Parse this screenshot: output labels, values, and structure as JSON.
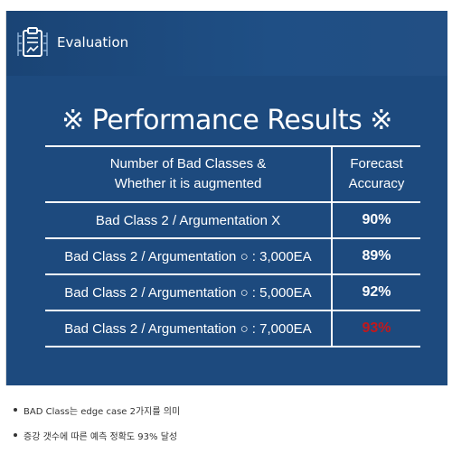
{
  "header": {
    "title": "Evaluation",
    "icon": "clipboard-chart-icon"
  },
  "slide": {
    "title": "※ Performance Results ※"
  },
  "table": {
    "headers": [
      "Number of Bad Classes &\nWhether it is augmented",
      "Forecast\nAccuracy"
    ],
    "rows": [
      {
        "condition": "Bad Class 2 / Argumentation X",
        "accuracy": "90%"
      },
      {
        "condition": "Bad Class 2 / Argumentation ○ : 3,000EA",
        "accuracy": "89%"
      },
      {
        "condition": "Bad Class 2 / Argumentation ○ : 5,000EA",
        "accuracy": "92%"
      },
      {
        "condition": "Bad Class 2 / Argumentation ○ : 7,000EA",
        "accuracy": "93%",
        "highlight": true
      }
    ]
  },
  "colors": {
    "slide_background": "#1d4a7e",
    "highlight": "#c2181c",
    "text": "#ffffff"
  },
  "notes": [
    "BAD Class는 edge case 2가지를 의미",
    "증강 갯수에 따른 예측 정확도 93% 달성"
  ]
}
